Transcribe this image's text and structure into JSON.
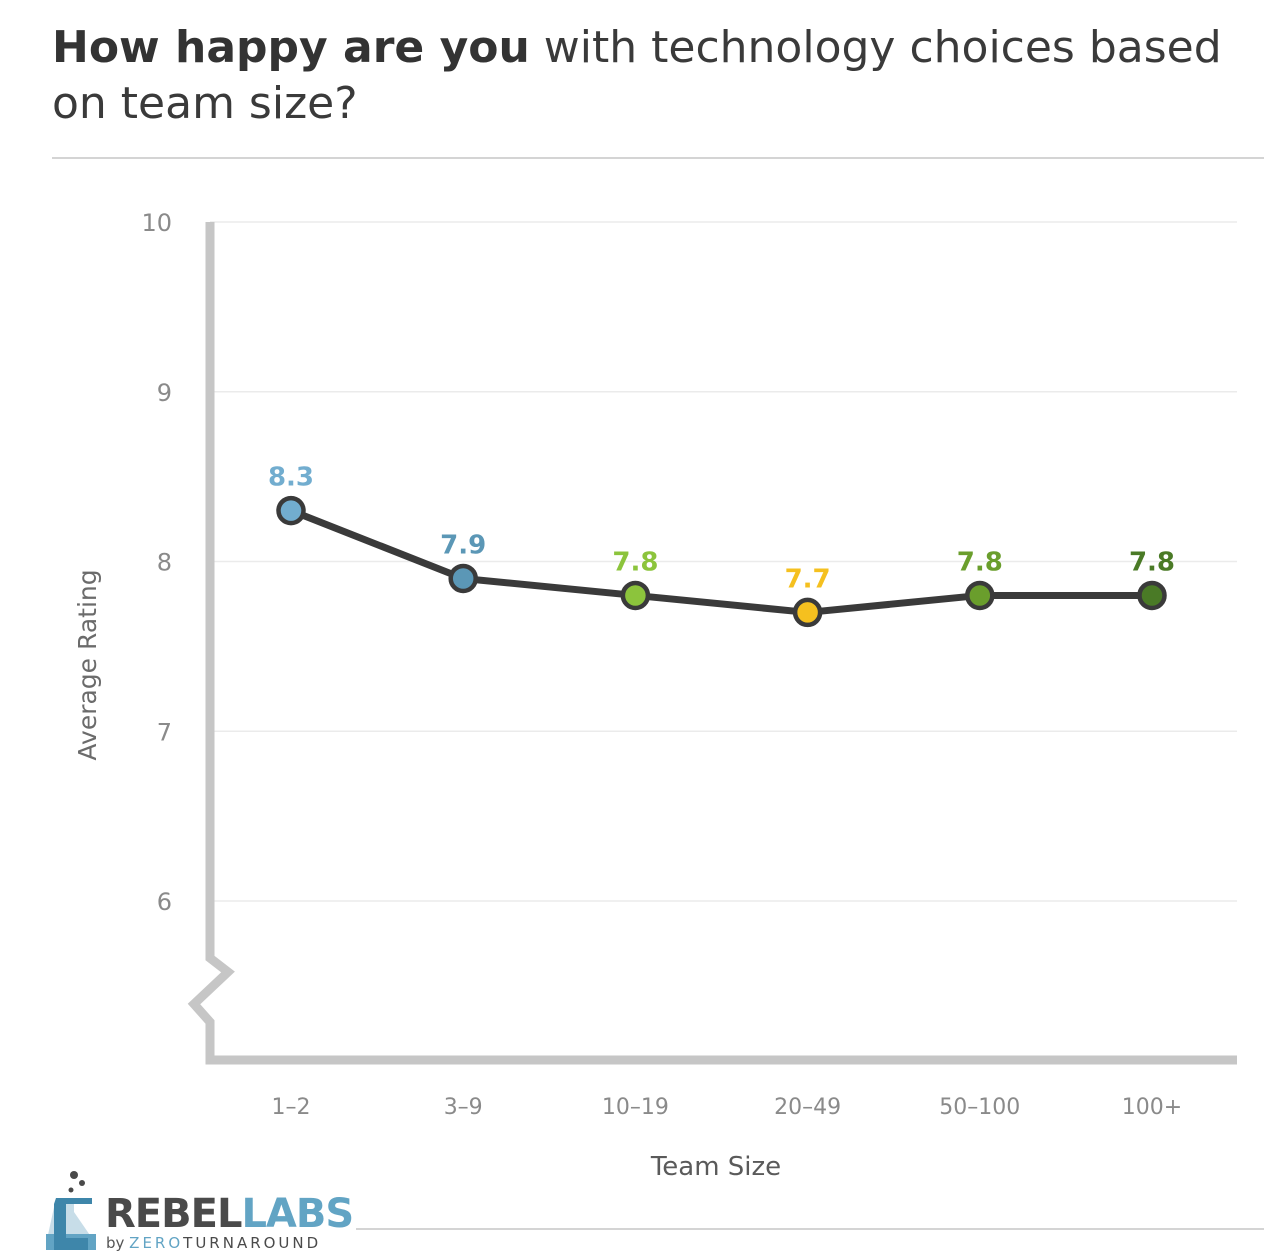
{
  "title": {
    "bold": "How happy are you",
    "rest": " with technology choices based on team size?"
  },
  "colors": {
    "line": "#3a3a3a",
    "axis": "#c6c6c6",
    "grid": "#ebebeb"
  },
  "chart_data": {
    "type": "line",
    "title": "How happy are you with technology choices based on team size?",
    "xlabel": "Team Size",
    "ylabel": "Average Rating",
    "categories": [
      "1–2",
      "3–9",
      "10–19",
      "20–49",
      "50–100",
      "100+"
    ],
    "series": [
      {
        "values": [
          8.3,
          7.9,
          7.8,
          7.7,
          7.8,
          7.8
        ],
        "labels": [
          "8.3",
          "7.9",
          "7.8",
          "7.7",
          "7.8",
          "7.8"
        ],
        "point_colors": [
          "#72adcf",
          "#5b97b6",
          "#8cc43c",
          "#f5c01f",
          "#6a9e2c",
          "#4a7a26"
        ],
        "label_colors": [
          "#72adcf",
          "#5b97b6",
          "#8cc43c",
          "#f5c01f",
          "#6a9e2c",
          "#4a7a26"
        ]
      }
    ],
    "yticks": [
      "6",
      "7",
      "8",
      "9",
      "10"
    ],
    "ylim": [
      5,
      10
    ],
    "axis_break": true,
    "grid": true,
    "legend": "none"
  },
  "logo": {
    "rebel": "REBEL",
    "labs": "LABS",
    "by": "by ",
    "zero": "ZERO",
    "turnaround": "TURNAROUND"
  }
}
